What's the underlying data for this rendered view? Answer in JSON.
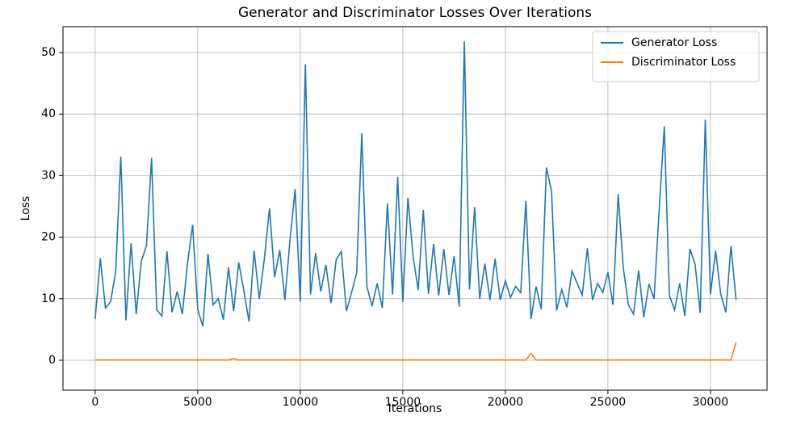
{
  "chart_data": {
    "type": "line",
    "title": "Generator and Discriminator Losses Over Iterations",
    "x_label": "Iterations",
    "y_label": "Loss",
    "x": [
      0,
      250,
      500,
      750,
      1000,
      1250,
      1500,
      1750,
      2000,
      2250,
      2500,
      2750,
      3000,
      3250,
      3500,
      3750,
      4000,
      4250,
      4500,
      4750,
      5000,
      5250,
      5500,
      5750,
      6000,
      6250,
      6500,
      6750,
      7000,
      7250,
      7500,
      7750,
      8000,
      8250,
      8500,
      8750,
      9000,
      9250,
      9500,
      9750,
      10000,
      10250,
      10500,
      10750,
      11000,
      11250,
      11500,
      11750,
      12000,
      12250,
      12500,
      12750,
      13000,
      13250,
      13500,
      13750,
      14000,
      14250,
      14500,
      14750,
      15000,
      15250,
      15500,
      15750,
      16000,
      16250,
      16500,
      16750,
      17000,
      17250,
      17500,
      17750,
      18000,
      18250,
      18500,
      18750,
      19000,
      19250,
      19500,
      19750,
      20000,
      20250,
      20500,
      20750,
      21000,
      21250,
      21500,
      21750,
      22000,
      22250,
      22500,
      22750,
      23000,
      23250,
      23500,
      23750,
      24000,
      24250,
      24500,
      24750,
      25000,
      25250,
      25500,
      25750,
      26000,
      26250,
      26500,
      26750,
      27000,
      27250,
      27500,
      27750,
      28000,
      28250,
      28500,
      28750,
      29000,
      29250,
      29500,
      29750,
      30000,
      30250,
      30500,
      30750,
      31000,
      31250
    ],
    "series": [
      {
        "name": "Generator Loss",
        "color": "#1f77b4",
        "values": [
          6.7,
          16.6,
          8.5,
          9.5,
          14.4,
          33.1,
          6.5,
          19,
          7.5,
          16.1,
          18.6,
          32.9,
          8.2,
          7.2,
          17.7,
          7.8,
          11.2,
          7.5,
          15.7,
          22,
          8.3,
          5.5,
          17.3,
          9,
          10,
          6.6,
          15.1,
          8,
          15.9,
          11.3,
          6.3,
          17.8,
          10,
          16.5,
          24.7,
          13.5,
          17.9,
          9.8,
          19.6,
          27.8,
          9.5,
          48.1,
          10.7,
          17.4,
          11.2,
          15.5,
          9.3,
          16.3,
          17.7,
          8,
          11,
          14.2,
          36.9,
          12,
          8.8,
          12.5,
          8.5,
          25.5,
          10.7,
          29.8,
          9.5,
          26.4,
          16.9,
          11.4,
          24.4,
          10.8,
          18.9,
          10.5,
          18.1,
          10.6,
          16.9,
          8.7,
          51.8,
          11.5,
          24.9,
          10,
          15.7,
          9.8,
          16.5,
          9.8,
          12.9,
          10.2,
          12,
          11,
          25.9,
          6.7,
          12,
          8.3,
          31.3,
          27.5,
          8.1,
          11.5,
          8.6,
          14.5,
          12.5,
          10.6,
          18.2,
          9.8,
          12.5,
          11,
          14.3,
          9,
          27,
          15,
          9,
          7.5,
          14.6,
          7,
          12.4,
          10,
          24.4,
          38,
          10.5,
          8.2,
          12.5,
          7.2,
          18.1,
          15.6,
          7.7,
          39.1,
          10.7,
          17.8,
          10.8,
          7.8,
          18.6,
          9.8
        ]
      },
      {
        "name": "Discriminator Loss",
        "color": "#ff7f0e",
        "values": [
          0.05,
          0.05,
          0.05,
          0.05,
          0.05,
          0.05,
          0.05,
          0.05,
          0.05,
          0.05,
          0.05,
          0.05,
          0.05,
          0.05,
          0.05,
          0.05,
          0.05,
          0.05,
          0.05,
          0.05,
          0.05,
          0.05,
          0.05,
          0.05,
          0.05,
          0.05,
          0.05,
          0.3,
          0.05,
          0.05,
          0.05,
          0.05,
          0.05,
          0.05,
          0.05,
          0.05,
          0.05,
          0.05,
          0.05,
          0.05,
          0.05,
          0.05,
          0.05,
          0.05,
          0.05,
          0.05,
          0.05,
          0.05,
          0.05,
          0.05,
          0.05,
          0.05,
          0.05,
          0.05,
          0.05,
          0.05,
          0.05,
          0.05,
          0.05,
          0.05,
          0.05,
          0.05,
          0.05,
          0.05,
          0.05,
          0.05,
          0.05,
          0.05,
          0.05,
          0.05,
          0.05,
          0.05,
          0.05,
          0.05,
          0.05,
          0.05,
          0.05,
          0.05,
          0.05,
          0.05,
          0.05,
          0.05,
          0.05,
          0.05,
          0.05,
          1.1,
          0.05,
          0.05,
          0.05,
          0.05,
          0.05,
          0.05,
          0.05,
          0.05,
          0.05,
          0.05,
          0.05,
          0.05,
          0.05,
          0.05,
          0.05,
          0.05,
          0.05,
          0.05,
          0.05,
          0.05,
          0.05,
          0.05,
          0.05,
          0.05,
          0.05,
          0.05,
          0.05,
          0.05,
          0.05,
          0.05,
          0.05,
          0.05,
          0.05,
          0.05,
          0.05,
          0.05,
          0.05,
          0.05,
          0.05,
          2.9
        ]
      }
    ],
    "xlim": [
      -1570,
      32760
    ],
    "ylim": [
      -4.86,
      54.2
    ],
    "xticks": [
      0,
      5000,
      10000,
      15000,
      20000,
      25000,
      30000
    ],
    "yticks": [
      0,
      10,
      20,
      30,
      40,
      50
    ],
    "grid": true,
    "legend": "upper right"
  }
}
